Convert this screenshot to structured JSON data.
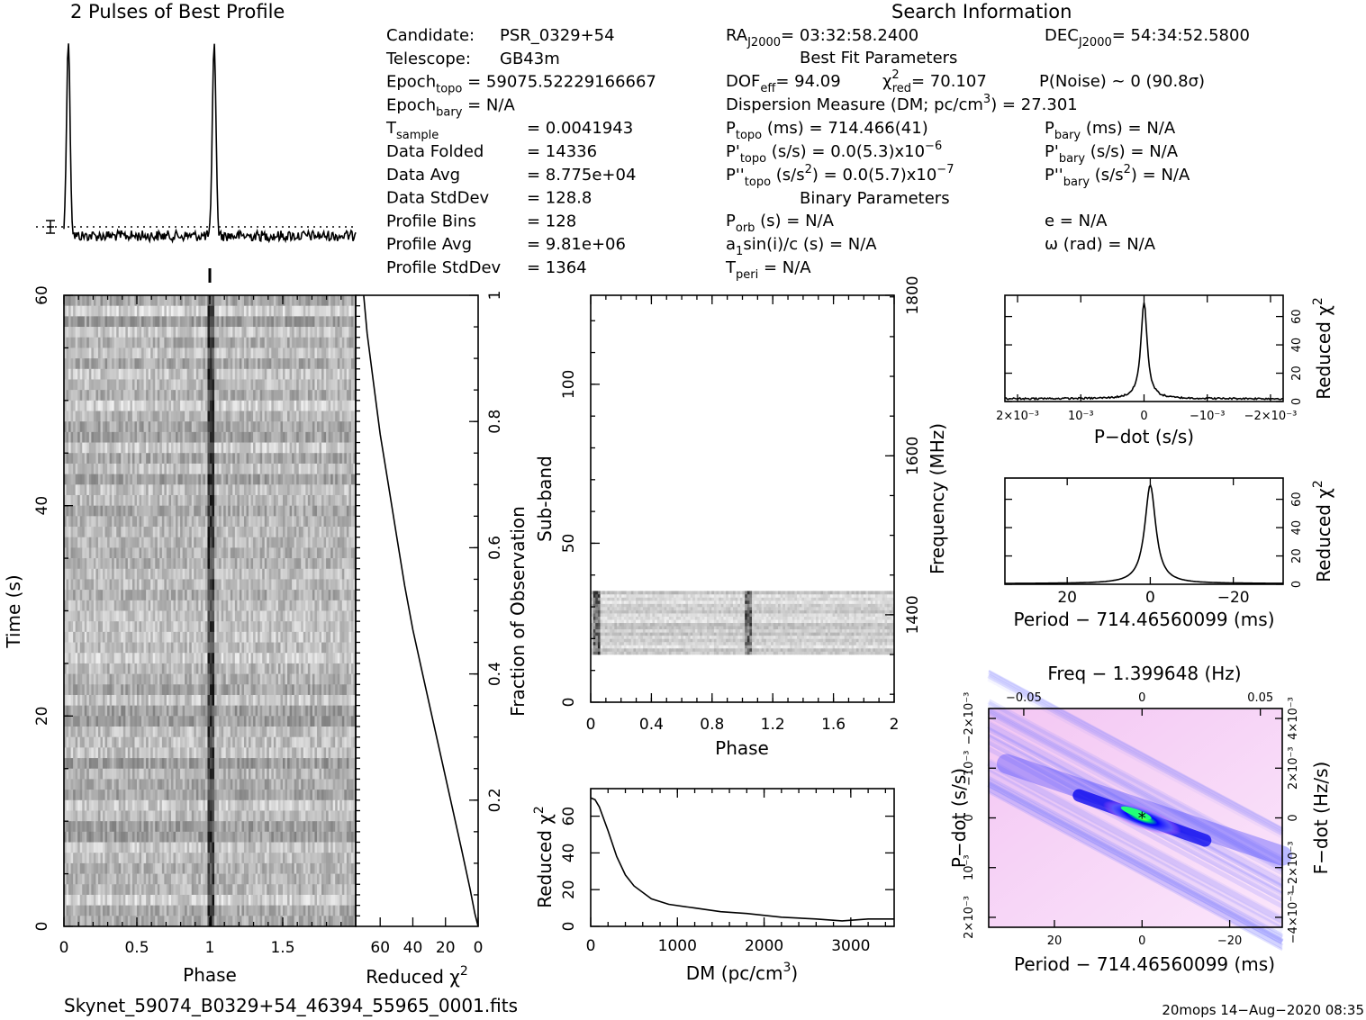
{
  "header": {
    "profile_title": "2 Pulses of Best Profile",
    "search_title": "Search Information",
    "best_fit_title": "Best Fit Parameters",
    "binary_title": "Binary Parameters"
  },
  "info": {
    "col1": [
      {
        "label": "Candidate:",
        "value": "PSR_0329+54"
      },
      {
        "label": "Telescope:",
        "value": "GB43m"
      },
      {
        "label": "Epoch",
        "sub": "topo",
        "value": "= 59075.52229166667"
      },
      {
        "label": "Epoch",
        "sub": "bary",
        "value": "= N/A"
      },
      {
        "label": "T",
        "sub": "sample",
        "value": "=    0.0041943"
      },
      {
        "label": "Data Folded",
        "value": "=    14336"
      },
      {
        "label": "Data Avg",
        "value": "=    8.775e+04"
      },
      {
        "label": "Data StdDev",
        "value": "=    128.8"
      },
      {
        "label": "Profile Bins",
        "value": "=    128"
      },
      {
        "label": "Profile Avg",
        "value": "=    9.81e+06"
      },
      {
        "label": "Profile StdDev",
        "value": "=    1364"
      }
    ],
    "ra": "RA",
    "ra_sub": "J2000",
    "ra_value": "= 03:32:58.2400",
    "dec": "DEC",
    "dec_sub": "J2000",
    "dec_value": "= 54:34:52.5800",
    "dof": "DOF",
    "dof_sub": "eff",
    "dof_value": "= 94.09",
    "chi": "χ",
    "chi_sup": "2",
    "chi_sub": "red",
    "chi_value": "= 70.107",
    "pnoise": "P(Noise) ~ 0    (90.8σ)",
    "dm": "Dispersion Measure (DM; pc/cm",
    "dm_sup": "3",
    "dm_value": ") = 27.301",
    "ptopo": "P",
    "ptopo_sub": "topo",
    "ptopo_value": " (ms) =  714.466(41)",
    "pbary": "P",
    "pbary_sub": "bary",
    "pbary_value": " (ms) = N/A",
    "pdtopo": "P'",
    "pdtopo_sub": "topo",
    "pdtopo_value": " (s/s) = 0.0(5.3)x10",
    "pdtopo_exp": "−6",
    "pdbary": "P'",
    "pdbary_sub": "bary",
    "pdbary_value": " (s/s) = N/A",
    "pddtopo": "P''",
    "pddtopo_sub": "topo",
    "pddtopo_value": " (s/s",
    "pddtopo_sup": "2",
    "pddtopo_value2": ") = 0.0(5.7)x10",
    "pddtopo_exp": "−7",
    "pddbary": "P''",
    "pddbary_sub": "bary",
    "pddbary_value": " (s/s",
    "pddbary_sup": "2",
    "pddbary_value2": ") = N/A",
    "porb": "P",
    "porb_sub": "orb",
    "porb_value": " (s) = N/A",
    "ecc": "e = N/A",
    "asini": "a",
    "asini_sub": "1",
    "asini_value": "sin(i)/c (s) = N/A",
    "omega": "ω (rad) = N/A",
    "tperi": "T",
    "tperi_sub": "peri",
    "tperi_value": " = N/A"
  },
  "footer": {
    "filename": "Skynet_59074_B0329+54_46394_55965_0001.fits",
    "stamp": "20mops 14−Aug−2020 08:35"
  },
  "chart_data": [
    {
      "id": "profile",
      "type": "line",
      "title": "2 Pulses of Best Profile",
      "x_range": [
        0,
        2
      ],
      "peak_phases": [
        0.03,
        1.03
      ],
      "peak_height": 1.0,
      "baseline": 0.0
    },
    {
      "id": "time-phase",
      "type": "heatmap",
      "xlabel": "Phase",
      "ylabel": "Time (s)",
      "xlim": [
        0,
        2
      ],
      "ylim": [
        0,
        60
      ],
      "x_ticks": [
        "0",
        "0.5",
        "1",
        "1.5"
      ],
      "x_tick_values": [
        0,
        0.5,
        1,
        1.5
      ],
      "y_ticks": [
        "0",
        "20",
        "40",
        "60"
      ],
      "y_tick_values": [
        0,
        20,
        40,
        60
      ],
      "pulse_phase": 1.0
    },
    {
      "id": "chi-vs-time",
      "type": "line",
      "xlabel": "Reduced χ",
      "xlabel_sup": "2",
      "ylabel": "Fraction of Observation",
      "xlim": [
        75,
        0
      ],
      "ylim": [
        0,
        1
      ],
      "x_ticks": [
        "60",
        "40",
        "20",
        "0"
      ],
      "x_tick_values": [
        60,
        40,
        20,
        0
      ],
      "y_ticks": [
        "0.2",
        "0.4",
        "0.6",
        "0.8",
        "1"
      ],
      "y_tick_values": [
        0.2,
        0.4,
        0.6,
        0.8,
        1
      ],
      "x": [
        0,
        2,
        5,
        10,
        16,
        22,
        28,
        34,
        40,
        45,
        50,
        55,
        60,
        64,
        68,
        70.1
      ],
      "y": [
        0,
        0.02,
        0.06,
        0.12,
        0.19,
        0.26,
        0.33,
        0.4,
        0.47,
        0.54,
        0.62,
        0.7,
        0.78,
        0.86,
        0.94,
        1.0
      ]
    },
    {
      "id": "subband-phase",
      "type": "heatmap",
      "xlabel": "Phase",
      "ylabel": "Sub-band",
      "y2label": "Frequency (MHz)",
      "xlim": [
        0,
        2
      ],
      "ylim": [
        0,
        128
      ],
      "x_ticks": [
        "0",
        "0.4",
        "0.8",
        "1.2",
        "1.6",
        "2"
      ],
      "x_tick_values": [
        0,
        0.4,
        0.8,
        1.2,
        1.6,
        2
      ],
      "y_ticks": [
        "0",
        "50",
        "100"
      ],
      "y_tick_values": [
        0,
        50,
        100
      ],
      "y2_ticks": [
        "1400",
        "1600",
        "1800"
      ],
      "y2_tick_values": [
        27.5,
        77.5,
        128
      ],
      "band_range": [
        15,
        35
      ],
      "pulse_phase": 1.03
    },
    {
      "id": "dm-chi",
      "type": "line",
      "xlabel": "DM (pc/cm",
      "xlabel_sup": "3",
      "xlabel_end": ")",
      "ylabel": "Reduced χ",
      "ylabel_sup": "2",
      "xlim": [
        0,
        3500
      ],
      "ylim": [
        0,
        75
      ],
      "x_ticks": [
        "0",
        "1000",
        "2000",
        "3000"
      ],
      "x_tick_values": [
        0,
        1000,
        2000,
        3000
      ],
      "y_ticks": [
        "0",
        "20",
        "40",
        "60"
      ],
      "y_tick_values": [
        0,
        20,
        40,
        60
      ],
      "x": [
        0,
        50,
        100,
        200,
        300,
        400,
        500,
        700,
        900,
        1200,
        1500,
        1800,
        2200,
        2600,
        2900,
        3200,
        3500
      ],
      "y": [
        70,
        69,
        65,
        52,
        38,
        28,
        22,
        15,
        12,
        10,
        8,
        7,
        5,
        4,
        3,
        4,
        4
      ]
    },
    {
      "id": "pdot-chi",
      "type": "line",
      "xlabel": "P−dot (s/s)",
      "ylabel": "Reduced χ",
      "ylabel_sup": "2",
      "xlim": [
        0.0022,
        -0.0022
      ],
      "ylim": [
        0,
        75
      ],
      "x_ticks": [
        "2×10⁻³",
        "10⁻³",
        "0",
        "−10⁻³",
        "−2×10⁻³"
      ],
      "x_tick_values": [
        0.002,
        0.001,
        0,
        -0.001,
        -0.002
      ],
      "y_ticks": [
        "0",
        "20",
        "40",
        "60"
      ],
      "y_tick_values": [
        0,
        20,
        40,
        60
      ],
      "peak_x": 0,
      "peak_y": 70,
      "floor_y": 2
    },
    {
      "id": "period-chi",
      "type": "line",
      "xlabel": "Period − 714.46560099 (ms)",
      "ylabel": "Reduced χ",
      "ylabel_sup": "2",
      "xlim": [
        35,
        -32
      ],
      "ylim": [
        0,
        75
      ],
      "x_ticks": [
        "20",
        "0",
        "−20"
      ],
      "x_tick_values": [
        20,
        0,
        -20
      ],
      "y_ticks": [
        "0",
        "20",
        "40",
        "60"
      ],
      "y_tick_values": [
        0,
        20,
        40,
        60
      ],
      "peak_x": 0,
      "peak_y": 70,
      "floor_y": 0.5
    },
    {
      "id": "period-pdot",
      "type": "heatmap",
      "title": "Freq − 1.399648 (Hz)",
      "xlabel": "Period − 714.46560099 (ms)",
      "ylabel": "P−dot (s/s)",
      "y2label": "F−dot (Hz/s)",
      "xlim": [
        35,
        -32
      ],
      "ylim": [
        -0.0022,
        0.0022
      ],
      "x_ticks": [
        "20",
        "0",
        "−20"
      ],
      "x_tick_values": [
        20,
        0,
        -20
      ],
      "top_ticks": [
        "−0.05",
        "0",
        "0.05"
      ],
      "top_tick_values": [
        27,
        0,
        -27
      ],
      "y_ticks": [
        "2×10⁻³",
        "10⁻³",
        "0",
        "−10⁻³",
        "−2×10⁻³"
      ],
      "y_tick_values": [
        -0.002,
        -0.001,
        0,
        0.001,
        0.002
      ],
      "y2_ticks": [
        "−4×10⁻³",
        "−2×10⁻³",
        "0",
        "2×10⁻³",
        "4×10⁻³"
      ],
      "y2_tick_values": [
        -0.002,
        -0.001,
        0,
        0.001,
        0.002
      ],
      "best_x": 0,
      "best_y": 0
    }
  ]
}
